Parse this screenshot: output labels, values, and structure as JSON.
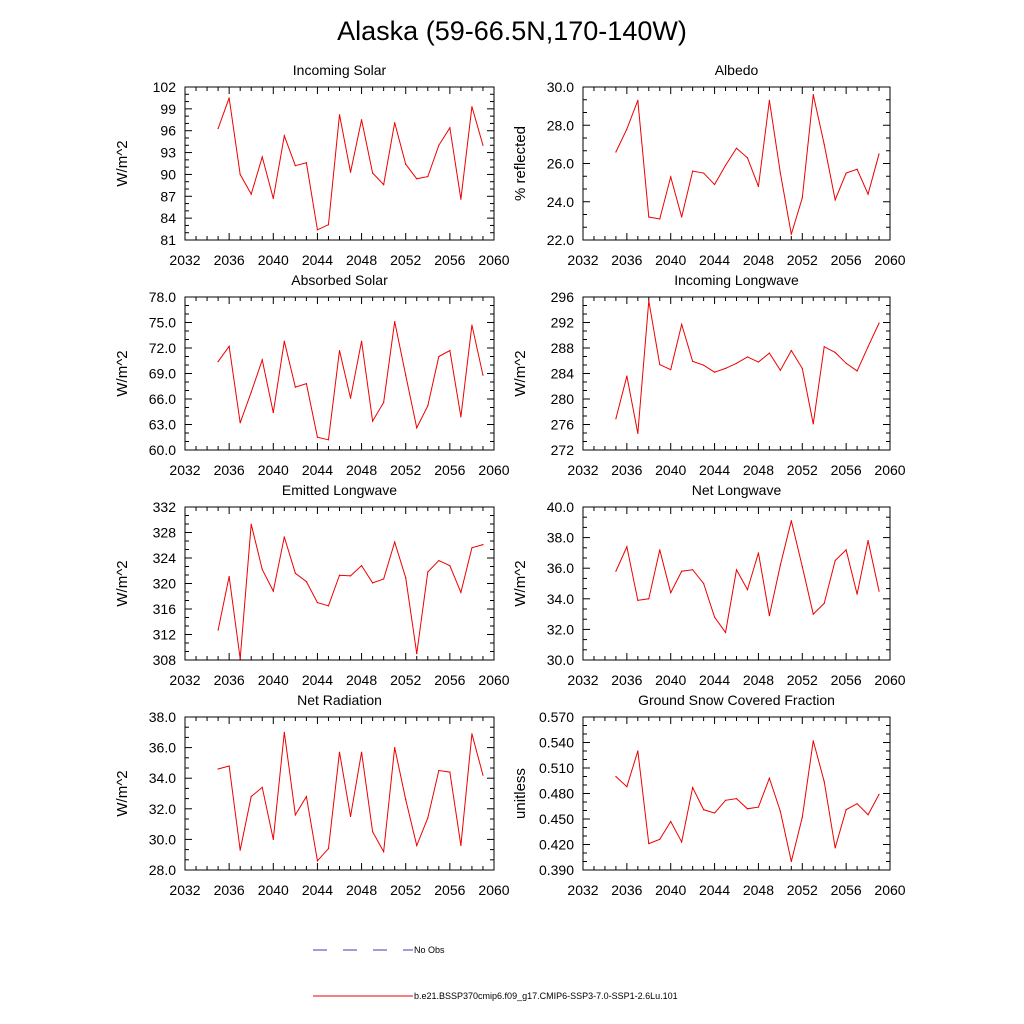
{
  "figure": {
    "title": "Alaska (59-66.5N,170-140W)",
    "line_color": "#ee0000",
    "legend": [
      {
        "label": "No Obs",
        "style": "dashed",
        "color": "#3c3cb4"
      },
      {
        "label": "b.e21.BSSP370cmip6.f09_g17.CMIP6-SSP3-7.0-SSP1-2.6Lu.101",
        "style": "solid",
        "color": "#ee0000"
      }
    ]
  },
  "chart_data": [
    {
      "type": "line",
      "title": "Incoming Solar",
      "ylabel": "W/m^2",
      "xlim": [
        2032,
        2060
      ],
      "ylim": [
        81,
        102
      ],
      "xticks": [
        2032,
        2036,
        2040,
        2044,
        2048,
        2052,
        2056,
        2060
      ],
      "yticks": [
        81,
        84,
        87,
        90,
        93,
        96,
        99,
        102
      ],
      "ytick_labels": [
        "81",
        "84",
        "87",
        "90",
        "93",
        "96",
        "99",
        "102"
      ],
      "x": [
        2035,
        2036,
        2037,
        2038,
        2039,
        2040,
        2041,
        2042,
        2043,
        2044,
        2045,
        2046,
        2047,
        2048,
        2049,
        2050,
        2051,
        2052,
        2053,
        2054,
        2055,
        2056,
        2057,
        2058,
        2059
      ],
      "series": [
        {
          "values": [
            96.3,
            100.5,
            90.0,
            87.3,
            92.4,
            86.7,
            95.3,
            91.2,
            91.6,
            82.4,
            83.1,
            98.2,
            90.3,
            97.5,
            90.2,
            88.6,
            97.1,
            91.4,
            89.4,
            89.7,
            94.0,
            96.4,
            86.6,
            99.3,
            94.0
          ]
        }
      ]
    },
    {
      "type": "line",
      "title": "Albedo",
      "ylabel": "% reflected",
      "xlim": [
        2032,
        2060
      ],
      "ylim": [
        22,
        30
      ],
      "xticks": [
        2032,
        2036,
        2040,
        2044,
        2048,
        2052,
        2056,
        2060
      ],
      "yticks": [
        22,
        24,
        26,
        28,
        30
      ],
      "ytick_labels": [
        "22.0",
        "24.0",
        "26.0",
        "28.0",
        "30.0"
      ],
      "x": [
        2035,
        2036,
        2037,
        2038,
        2039,
        2040,
        2041,
        2042,
        2043,
        2044,
        2045,
        2046,
        2047,
        2048,
        2049,
        2050,
        2051,
        2052,
        2053,
        2054,
        2055,
        2056,
        2057,
        2058,
        2059
      ],
      "series": [
        {
          "values": [
            26.6,
            27.8,
            29.3,
            23.2,
            23.1,
            25.3,
            23.2,
            25.6,
            25.5,
            24.9,
            25.9,
            26.8,
            26.3,
            24.8,
            29.3,
            25.5,
            22.3,
            24.2,
            29.6,
            27.0,
            24.1,
            25.5,
            25.7,
            24.4,
            26.5
          ]
        }
      ]
    },
    {
      "type": "line",
      "title": "Absorbed Solar",
      "ylabel": "W/m^2",
      "xlim": [
        2032,
        2060
      ],
      "ylim": [
        60,
        78
      ],
      "xticks": [
        2032,
        2036,
        2040,
        2044,
        2048,
        2052,
        2056,
        2060
      ],
      "yticks": [
        60,
        63,
        66,
        69,
        72,
        75,
        78
      ],
      "ytick_labels": [
        "60.0",
        "63.0",
        "66.0",
        "69.0",
        "72.0",
        "75.0",
        "78.0"
      ],
      "x": [
        2035,
        2036,
        2037,
        2038,
        2039,
        2040,
        2041,
        2042,
        2043,
        2044,
        2045,
        2046,
        2047,
        2048,
        2049,
        2050,
        2051,
        2052,
        2053,
        2054,
        2055,
        2056,
        2057,
        2058,
        2059
      ],
      "series": [
        {
          "values": [
            70.4,
            72.2,
            63.2,
            66.8,
            70.6,
            64.4,
            72.8,
            67.4,
            67.8,
            61.5,
            61.2,
            71.7,
            66.1,
            72.8,
            63.4,
            65.6,
            75.1,
            68.8,
            62.6,
            65.2,
            71.0,
            71.7,
            63.9,
            74.7,
            68.8
          ]
        }
      ]
    },
    {
      "type": "line",
      "title": "Incoming Longwave",
      "ylabel": "W/m^2",
      "xlim": [
        2032,
        2060
      ],
      "ylim": [
        272,
        296
      ],
      "xticks": [
        2032,
        2036,
        2040,
        2044,
        2048,
        2052,
        2056,
        2060
      ],
      "yticks": [
        272,
        276,
        280,
        284,
        288,
        292,
        296
      ],
      "ytick_labels": [
        "272",
        "276",
        "280",
        "284",
        "288",
        "292",
        "296"
      ],
      "x": [
        2035,
        2036,
        2037,
        2038,
        2039,
        2040,
        2041,
        2042,
        2043,
        2044,
        2045,
        2046,
        2047,
        2048,
        2049,
        2050,
        2051,
        2052,
        2053,
        2054,
        2055,
        2056,
        2057,
        2058,
        2059
      ],
      "series": [
        {
          "values": [
            276.9,
            283.6,
            274.6,
            295.4,
            285.4,
            284.6,
            291.7,
            285.9,
            285.3,
            284.2,
            284.8,
            285.6,
            286.6,
            285.8,
            287.2,
            284.5,
            287.6,
            284.8,
            276.1,
            288.2,
            287.3,
            285.6,
            284.4,
            288.2,
            291.9
          ]
        }
      ]
    },
    {
      "type": "line",
      "title": "Emitted Longwave",
      "ylabel": "W/m^2",
      "xlim": [
        2032,
        2060
      ],
      "ylim": [
        308,
        332
      ],
      "xticks": [
        2032,
        2036,
        2040,
        2044,
        2048,
        2052,
        2056,
        2060
      ],
      "yticks": [
        308,
        312,
        316,
        320,
        324,
        328,
        332
      ],
      "ytick_labels": [
        "308",
        "312",
        "316",
        "320",
        "324",
        "328",
        "332"
      ],
      "x": [
        2035,
        2036,
        2037,
        2038,
        2039,
        2040,
        2041,
        2042,
        2043,
        2044,
        2045,
        2046,
        2047,
        2048,
        2049,
        2050,
        2051,
        2052,
        2053,
        2054,
        2055,
        2056,
        2057,
        2058,
        2059
      ],
      "series": [
        {
          "values": [
            312.7,
            321.1,
            308.2,
            329.3,
            322.2,
            318.8,
            327.3,
            321.6,
            320.3,
            317.0,
            316.5,
            321.3,
            321.2,
            322.8,
            320.1,
            320.7,
            326.5,
            320.9,
            309.0,
            321.8,
            323.6,
            322.8,
            318.6,
            325.6,
            326.1
          ]
        }
      ]
    },
    {
      "type": "line",
      "title": "Net Longwave",
      "ylabel": "W/m^2",
      "xlim": [
        2032,
        2060
      ],
      "ylim": [
        30,
        40
      ],
      "xticks": [
        2032,
        2036,
        2040,
        2044,
        2048,
        2052,
        2056,
        2060
      ],
      "yticks": [
        30,
        32,
        34,
        36,
        38,
        40
      ],
      "ytick_labels": [
        "30.0",
        "32.0",
        "34.0",
        "36.0",
        "38.0",
        "40.0"
      ],
      "x": [
        2035,
        2036,
        2037,
        2038,
        2039,
        2040,
        2041,
        2042,
        2043,
        2044,
        2045,
        2046,
        2047,
        2048,
        2049,
        2050,
        2051,
        2052,
        2053,
        2054,
        2055,
        2056,
        2057,
        2058,
        2059
      ],
      "series": [
        {
          "values": [
            35.8,
            37.4,
            33.9,
            34.0,
            37.2,
            34.4,
            35.8,
            35.9,
            35.0,
            32.8,
            31.8,
            35.9,
            34.6,
            37.0,
            32.9,
            36.2,
            39.1,
            36.1,
            33.0,
            33.7,
            36.5,
            37.2,
            34.3,
            37.8,
            34.5
          ]
        }
      ]
    },
    {
      "type": "line",
      "title": "Net Radiation",
      "ylabel": "W/m^2",
      "xlim": [
        2032,
        2060
      ],
      "ylim": [
        28,
        38
      ],
      "xticks": [
        2032,
        2036,
        2040,
        2044,
        2048,
        2052,
        2056,
        2060
      ],
      "yticks": [
        28,
        30,
        32,
        34,
        36,
        38
      ],
      "ytick_labels": [
        "28.0",
        "30.0",
        "32.0",
        "34.0",
        "36.0",
        "38.0"
      ],
      "x": [
        2035,
        2036,
        2037,
        2038,
        2039,
        2040,
        2041,
        2042,
        2043,
        2044,
        2045,
        2046,
        2047,
        2048,
        2049,
        2050,
        2051,
        2052,
        2053,
        2054,
        2055,
        2056,
        2057,
        2058,
        2059
      ],
      "series": [
        {
          "values": [
            34.6,
            34.8,
            29.3,
            32.8,
            33.4,
            30.0,
            37.0,
            31.6,
            32.8,
            28.6,
            29.4,
            35.7,
            31.5,
            35.7,
            30.5,
            29.2,
            36.0,
            32.6,
            29.6,
            31.4,
            34.5,
            34.4,
            29.6,
            36.9,
            34.2
          ]
        }
      ]
    },
    {
      "type": "line",
      "title": "Ground Snow Covered Fraction",
      "ylabel": "unitless",
      "xlim": [
        2032,
        2060
      ],
      "ylim": [
        0.39,
        0.57
      ],
      "xticks": [
        2032,
        2036,
        2040,
        2044,
        2048,
        2052,
        2056,
        2060
      ],
      "yticks": [
        0.39,
        0.42,
        0.45,
        0.48,
        0.51,
        0.54,
        0.57
      ],
      "ytick_labels": [
        "0.390",
        "0.420",
        "0.450",
        "0.480",
        "0.510",
        "0.540",
        "0.570"
      ],
      "x": [
        2035,
        2036,
        2037,
        2038,
        2039,
        2040,
        2041,
        2042,
        2043,
        2044,
        2045,
        2046,
        2047,
        2048,
        2049,
        2050,
        2051,
        2052,
        2053,
        2054,
        2055,
        2056,
        2057,
        2058,
        2059
      ],
      "series": [
        {
          "values": [
            0.5,
            0.488,
            0.53,
            0.421,
            0.426,
            0.447,
            0.423,
            0.487,
            0.461,
            0.457,
            0.472,
            0.474,
            0.462,
            0.464,
            0.498,
            0.459,
            0.4,
            0.452,
            0.542,
            0.494,
            0.416,
            0.461,
            0.468,
            0.455,
            0.479
          ]
        }
      ]
    }
  ]
}
